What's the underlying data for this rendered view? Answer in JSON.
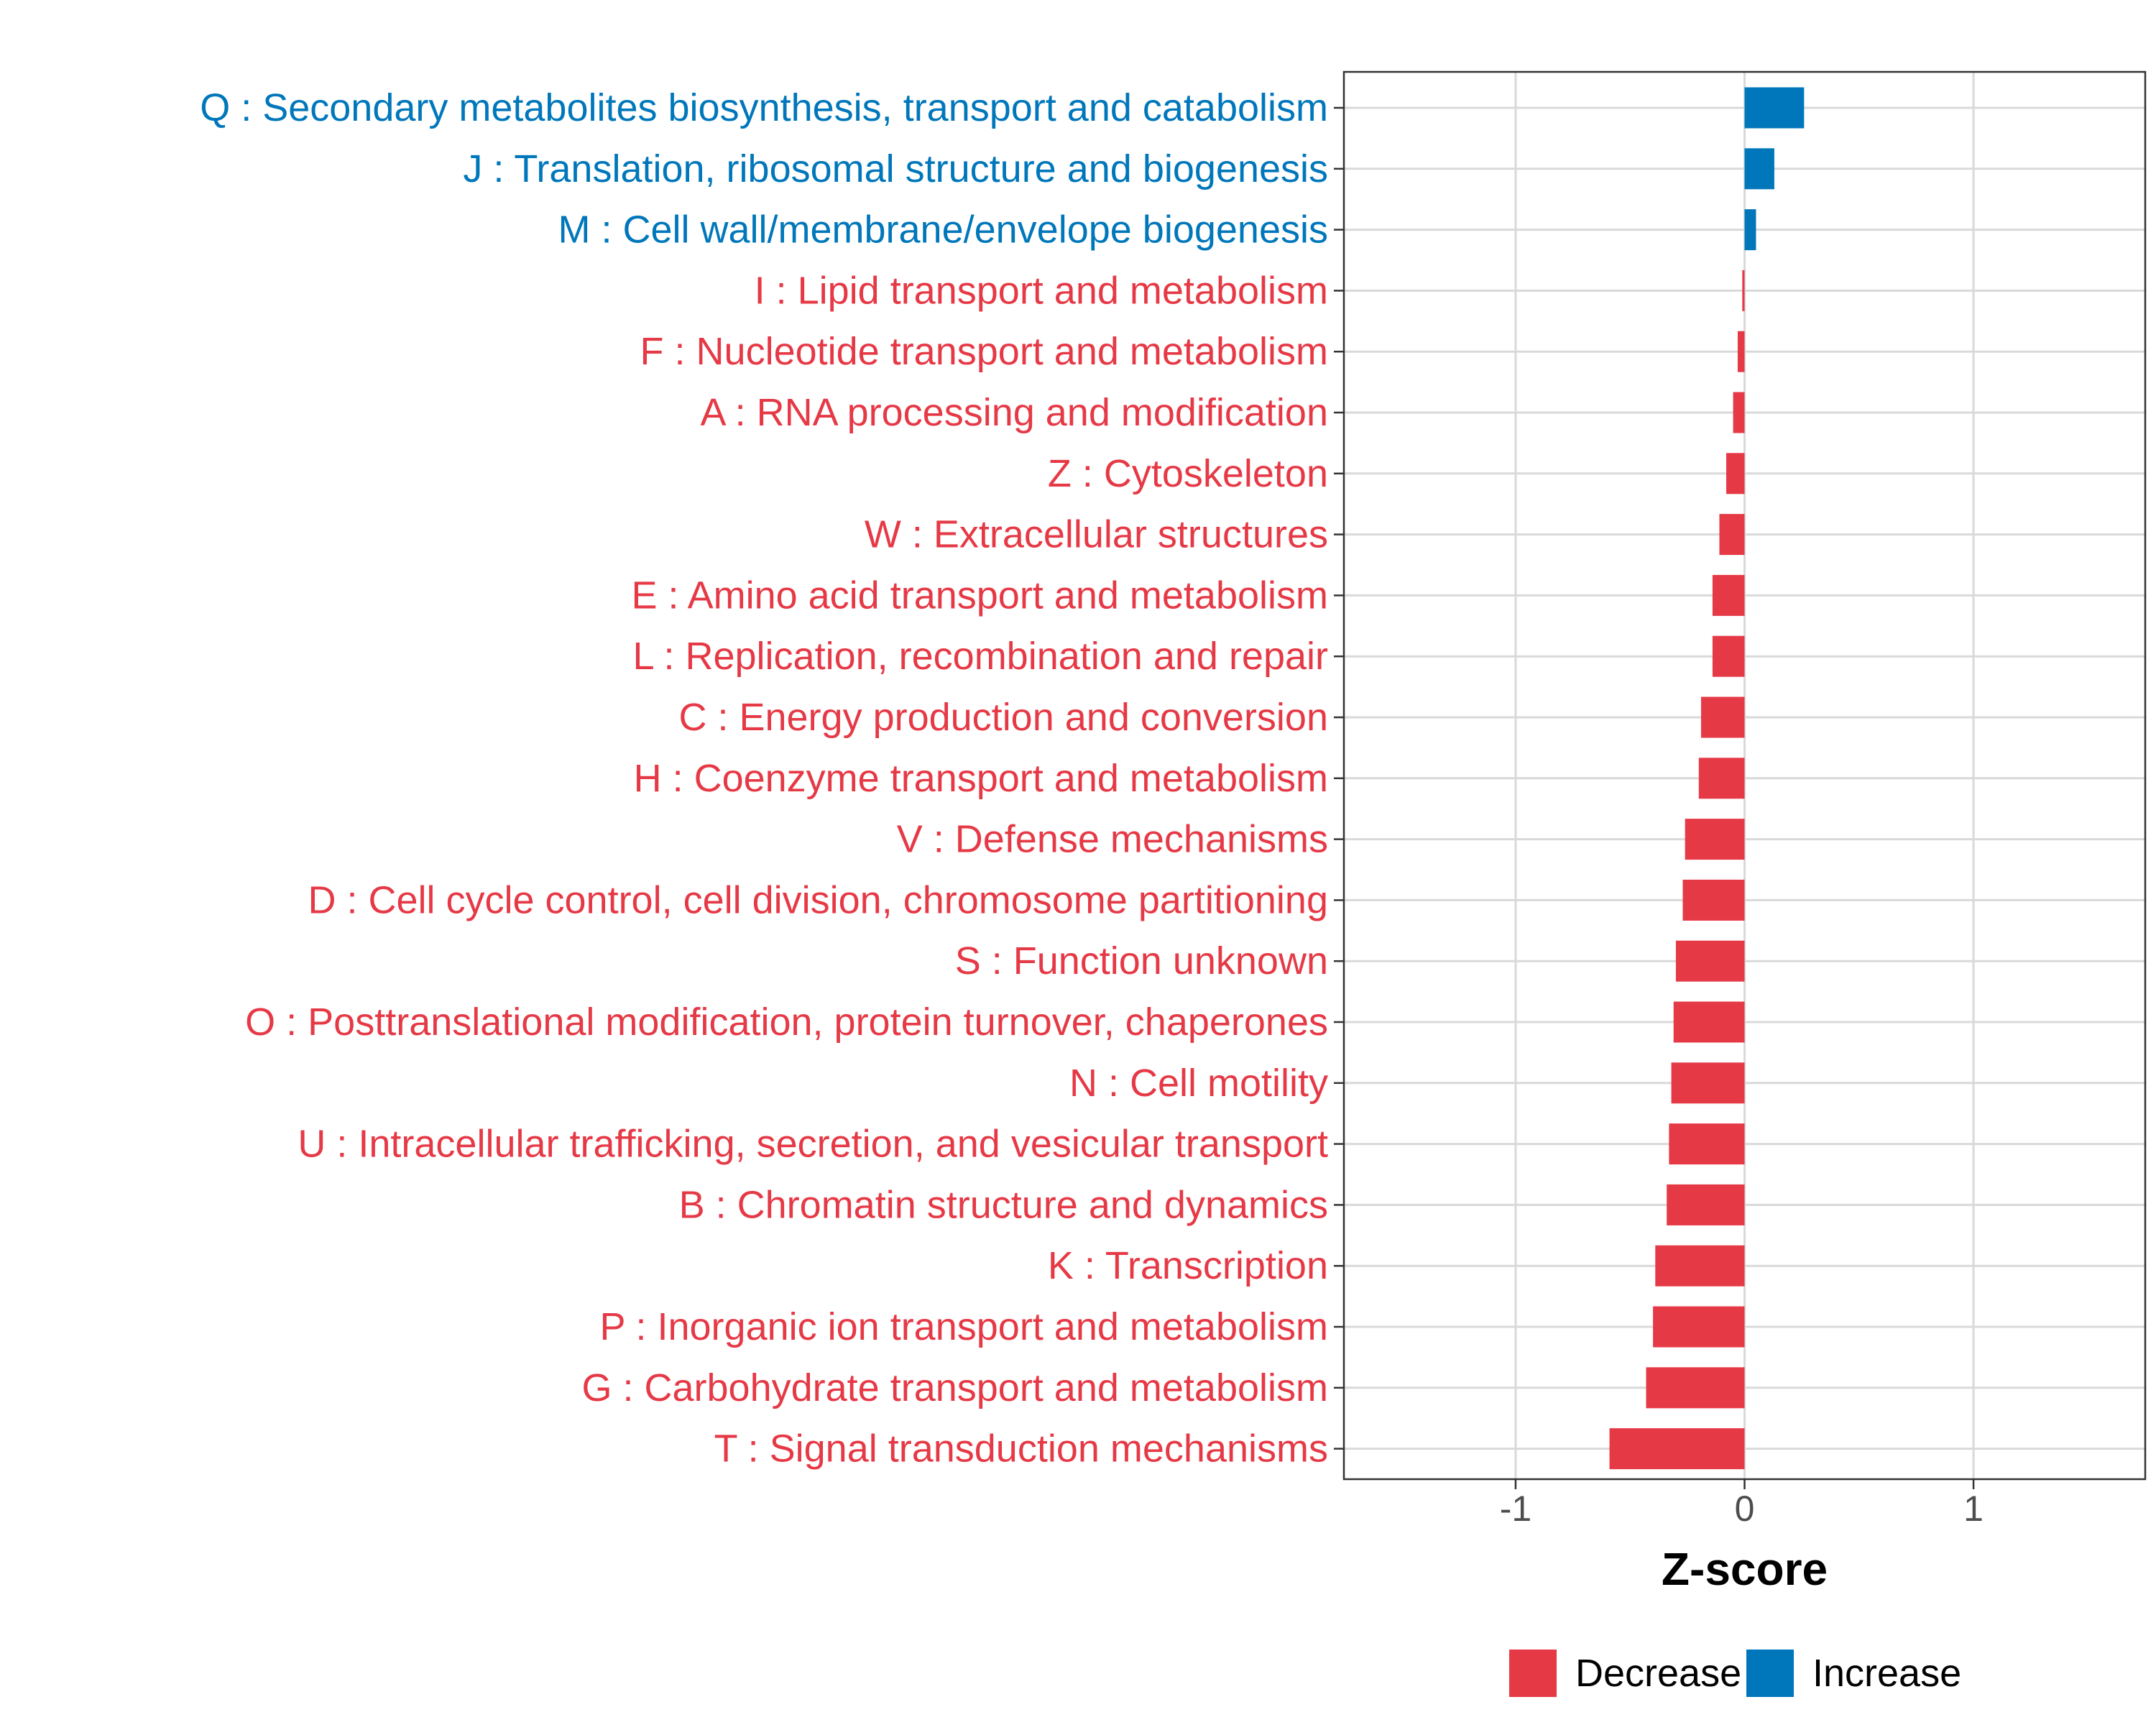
{
  "chart_data": {
    "type": "bar",
    "orientation": "horizontal",
    "xlabel": "Z-score",
    "xlim": [
      -1.75,
      1.75
    ],
    "xticks": [
      -1,
      0,
      1
    ],
    "xtick_labels": [
      "-1",
      "0",
      "1"
    ],
    "grid": true,
    "legend_position": "bottom",
    "colors": {
      "Decrease": "#e63946",
      "Increase": "#0077bb"
    },
    "legend": [
      {
        "key": "Decrease",
        "label": "Decrease"
      },
      {
        "key": "Increase",
        "label": "Increase"
      }
    ],
    "categories": [
      "Q : Secondary metabolites biosynthesis, transport and catabolism",
      "J : Translation, ribosomal structure and biogenesis",
      "M : Cell wall/membrane/envelope biogenesis",
      "I : Lipid transport and metabolism",
      "F : Nucleotide transport and metabolism",
      "A : RNA processing and modification",
      "Z : Cytoskeleton",
      "W : Extracellular structures",
      "E : Amino acid transport and metabolism",
      "L : Replication, recombination and repair",
      "C : Energy production and conversion",
      "H : Coenzyme transport and metabolism",
      "V : Defense mechanisms",
      "D : Cell cycle control, cell division, chromosome partitioning",
      "S : Function unknown",
      "O : Posttranslational modification, protein turnover, chaperones",
      "N : Cell motility",
      "U : Intracellular trafficking, secretion, and vesicular transport",
      "B : Chromatin structure and dynamics",
      "K : Transcription",
      "P : Inorganic ion transport and metabolism",
      "G : Carbohydrate transport and metabolism",
      "T : Signal transduction mechanisms"
    ],
    "values": [
      0.26,
      0.13,
      0.05,
      -0.01,
      -0.03,
      -0.05,
      -0.08,
      -0.11,
      -0.14,
      -0.14,
      -0.19,
      -0.2,
      -0.26,
      -0.27,
      -0.3,
      -0.31,
      -0.32,
      -0.33,
      -0.34,
      -0.39,
      -0.4,
      -0.43,
      -0.59
    ],
    "groups": [
      "Increase",
      "Increase",
      "Increase",
      "Decrease",
      "Decrease",
      "Decrease",
      "Decrease",
      "Decrease",
      "Decrease",
      "Decrease",
      "Decrease",
      "Decrease",
      "Decrease",
      "Decrease",
      "Decrease",
      "Decrease",
      "Decrease",
      "Decrease",
      "Decrease",
      "Decrease",
      "Decrease",
      "Decrease",
      "Decrease"
    ]
  }
}
